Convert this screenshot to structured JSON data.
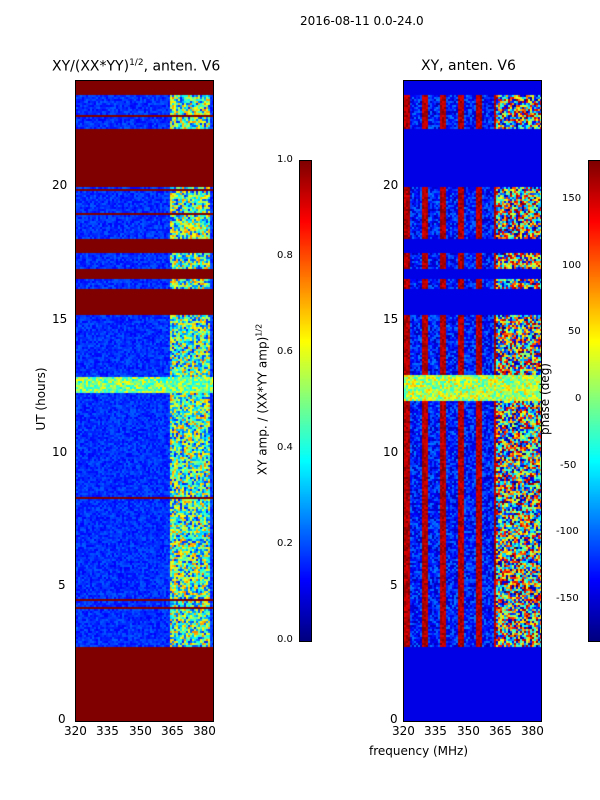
{
  "figure_title": "2016-08-11 0.0-24.0",
  "chart_data": [
    {
      "type": "heatmap",
      "title": "XY/(XX*YY)",
      "title_superscript": "1/2",
      "title_suffix": ", anten. V6",
      "xlabel": "",
      "ylabel": "UT (hours)",
      "xlim": [
        320,
        382
      ],
      "ylim": [
        0,
        24
      ],
      "xticks": [
        "320",
        "335",
        "350",
        "365",
        "380"
      ],
      "yticks": [
        "0",
        "5",
        "10",
        "15",
        "20"
      ],
      "data_start_hour": 2.8,
      "high_amplitude_band_mhz": [
        362,
        380
      ],
      "colorbar": {
        "label": "XY amp. / (XX*YY amp)",
        "label_superscript": "1/2",
        "range": [
          0.0,
          1.0
        ],
        "ticks": [
          "0.0",
          "0.2",
          "0.4",
          "0.6",
          "0.8",
          "1.0"
        ]
      },
      "flagged_intervals_hours": [
        [
          0,
          2.8
        ],
        [
          15.3,
          16.2
        ],
        [
          16.6,
          17.0
        ],
        [
          17.6,
          18.1
        ],
        [
          20.1,
          22.2
        ],
        [
          23.5,
          24.0
        ]
      ]
    },
    {
      "type": "heatmap",
      "title": "XY, anten. V6",
      "xlabel": "frequency (MHz)",
      "ylabel": "",
      "xlim": [
        320,
        382
      ],
      "ylim": [
        0,
        24
      ],
      "xticks": [
        "320",
        "335",
        "350",
        "365",
        "380"
      ],
      "yticks": [
        "0",
        "5",
        "10",
        "15",
        "20"
      ],
      "colorbar": {
        "label": "phase (deg)",
        "range": [
          -180,
          180
        ],
        "ticks": [
          "-150",
          "-100",
          "-50",
          "0",
          "50",
          "100",
          "150"
        ]
      },
      "flagged_intervals_hours": [
        [
          0,
          2.8
        ],
        [
          15.3,
          16.2
        ],
        [
          16.6,
          17.0
        ],
        [
          17.6,
          18.1
        ],
        [
          20.1,
          22.2
        ],
        [
          23.5,
          24.0
        ]
      ]
    }
  ]
}
